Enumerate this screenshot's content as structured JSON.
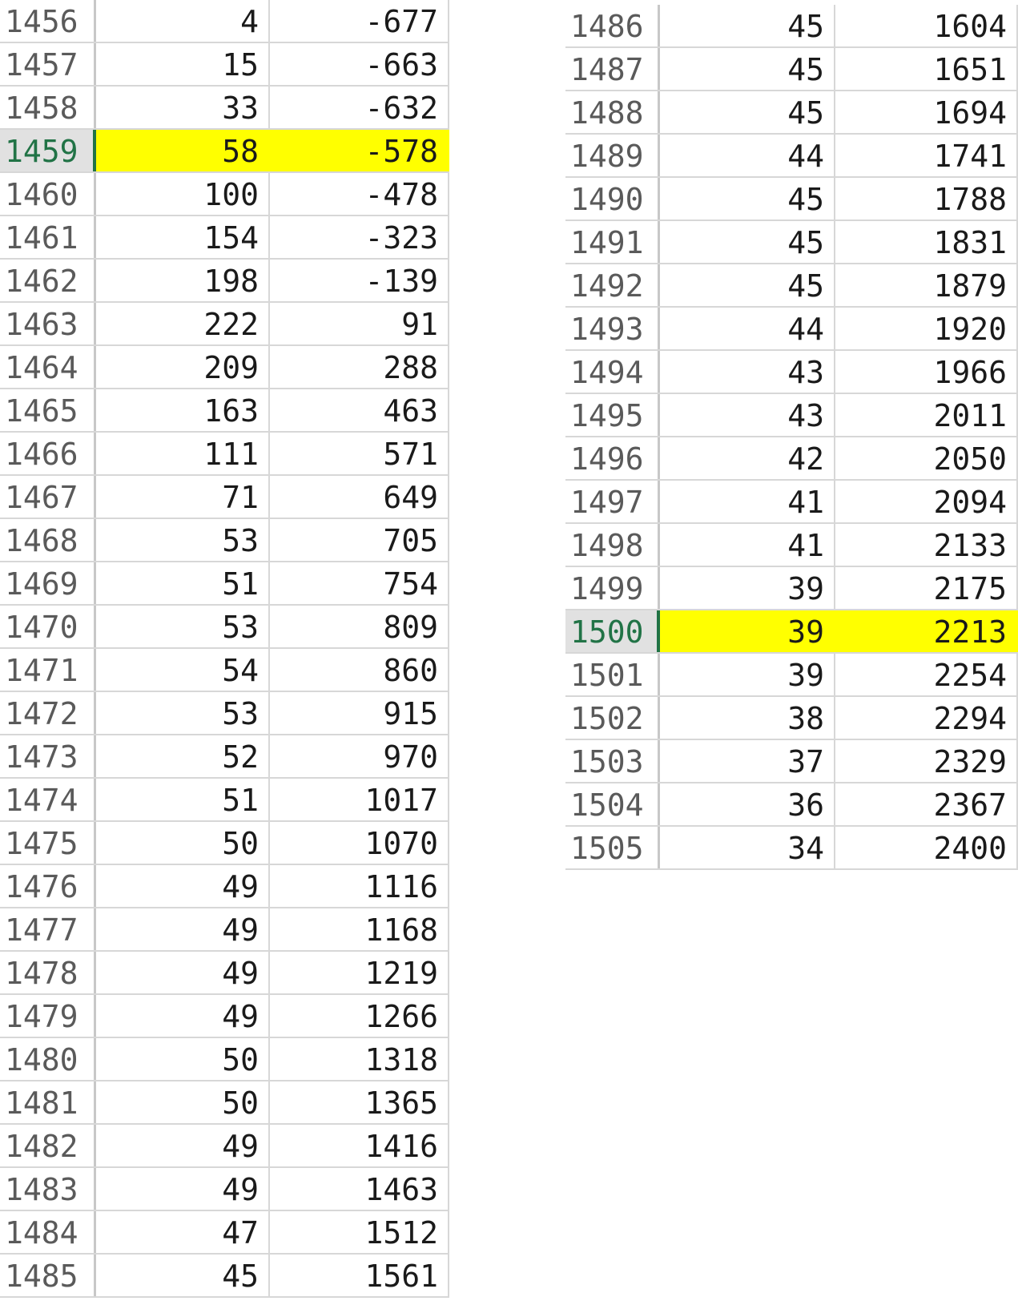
{
  "colors": {
    "highlight": "#ffff00",
    "selected_header_text": "#217346",
    "selected_header_bg": "#e1e1e1",
    "gridline": "#d7d7d7"
  },
  "left_block": {
    "rows": [
      {
        "row": "1456",
        "b": "4",
        "c": "-677"
      },
      {
        "row": "1457",
        "b": "15",
        "c": "-663"
      },
      {
        "row": "1458",
        "b": "33",
        "c": "-632"
      },
      {
        "row": "1459",
        "b": "58",
        "c": "-578",
        "highlighted": true
      },
      {
        "row": "1460",
        "b": "100",
        "c": "-478"
      },
      {
        "row": "1461",
        "b": "154",
        "c": "-323"
      },
      {
        "row": "1462",
        "b": "198",
        "c": "-139"
      },
      {
        "row": "1463",
        "b": "222",
        "c": "91"
      },
      {
        "row": "1464",
        "b": "209",
        "c": "288"
      },
      {
        "row": "1465",
        "b": "163",
        "c": "463"
      },
      {
        "row": "1466",
        "b": "111",
        "c": "571"
      },
      {
        "row": "1467",
        "b": "71",
        "c": "649"
      },
      {
        "row": "1468",
        "b": "53",
        "c": "705"
      },
      {
        "row": "1469",
        "b": "51",
        "c": "754"
      },
      {
        "row": "1470",
        "b": "53",
        "c": "809"
      },
      {
        "row": "1471",
        "b": "54",
        "c": "860"
      },
      {
        "row": "1472",
        "b": "53",
        "c": "915"
      },
      {
        "row": "1473",
        "b": "52",
        "c": "970"
      },
      {
        "row": "1474",
        "b": "51",
        "c": "1017"
      },
      {
        "row": "1475",
        "b": "50",
        "c": "1070"
      },
      {
        "row": "1476",
        "b": "49",
        "c": "1116"
      },
      {
        "row": "1477",
        "b": "49",
        "c": "1168"
      },
      {
        "row": "1478",
        "b": "49",
        "c": "1219"
      },
      {
        "row": "1479",
        "b": "49",
        "c": "1266"
      },
      {
        "row": "1480",
        "b": "50",
        "c": "1318"
      },
      {
        "row": "1481",
        "b": "50",
        "c": "1365"
      },
      {
        "row": "1482",
        "b": "49",
        "c": "1416"
      },
      {
        "row": "1483",
        "b": "49",
        "c": "1463"
      },
      {
        "row": "1484",
        "b": "47",
        "c": "1512"
      },
      {
        "row": "1485",
        "b": "45",
        "c": "1561"
      }
    ]
  },
  "right_block": {
    "rows": [
      {
        "row": "1486",
        "b": "45",
        "c": "1604"
      },
      {
        "row": "1487",
        "b": "45",
        "c": "1651"
      },
      {
        "row": "1488",
        "b": "45",
        "c": "1694"
      },
      {
        "row": "1489",
        "b": "44",
        "c": "1741"
      },
      {
        "row": "1490",
        "b": "45",
        "c": "1788"
      },
      {
        "row": "1491",
        "b": "45",
        "c": "1831"
      },
      {
        "row": "1492",
        "b": "45",
        "c": "1879"
      },
      {
        "row": "1493",
        "b": "44",
        "c": "1920"
      },
      {
        "row": "1494",
        "b": "43",
        "c": "1966"
      },
      {
        "row": "1495",
        "b": "43",
        "c": "2011"
      },
      {
        "row": "1496",
        "b": "42",
        "c": "2050"
      },
      {
        "row": "1497",
        "b": "41",
        "c": "2094"
      },
      {
        "row": "1498",
        "b": "41",
        "c": "2133"
      },
      {
        "row": "1499",
        "b": "39",
        "c": "2175"
      },
      {
        "row": "1500",
        "b": "39",
        "c": "2213",
        "highlighted": true
      },
      {
        "row": "1501",
        "b": "39",
        "c": "2254"
      },
      {
        "row": "1502",
        "b": "38",
        "c": "2294"
      },
      {
        "row": "1503",
        "b": "37",
        "c": "2329"
      },
      {
        "row": "1504",
        "b": "36",
        "c": "2367"
      },
      {
        "row": "1505",
        "b": "34",
        "c": "2400"
      }
    ]
  }
}
